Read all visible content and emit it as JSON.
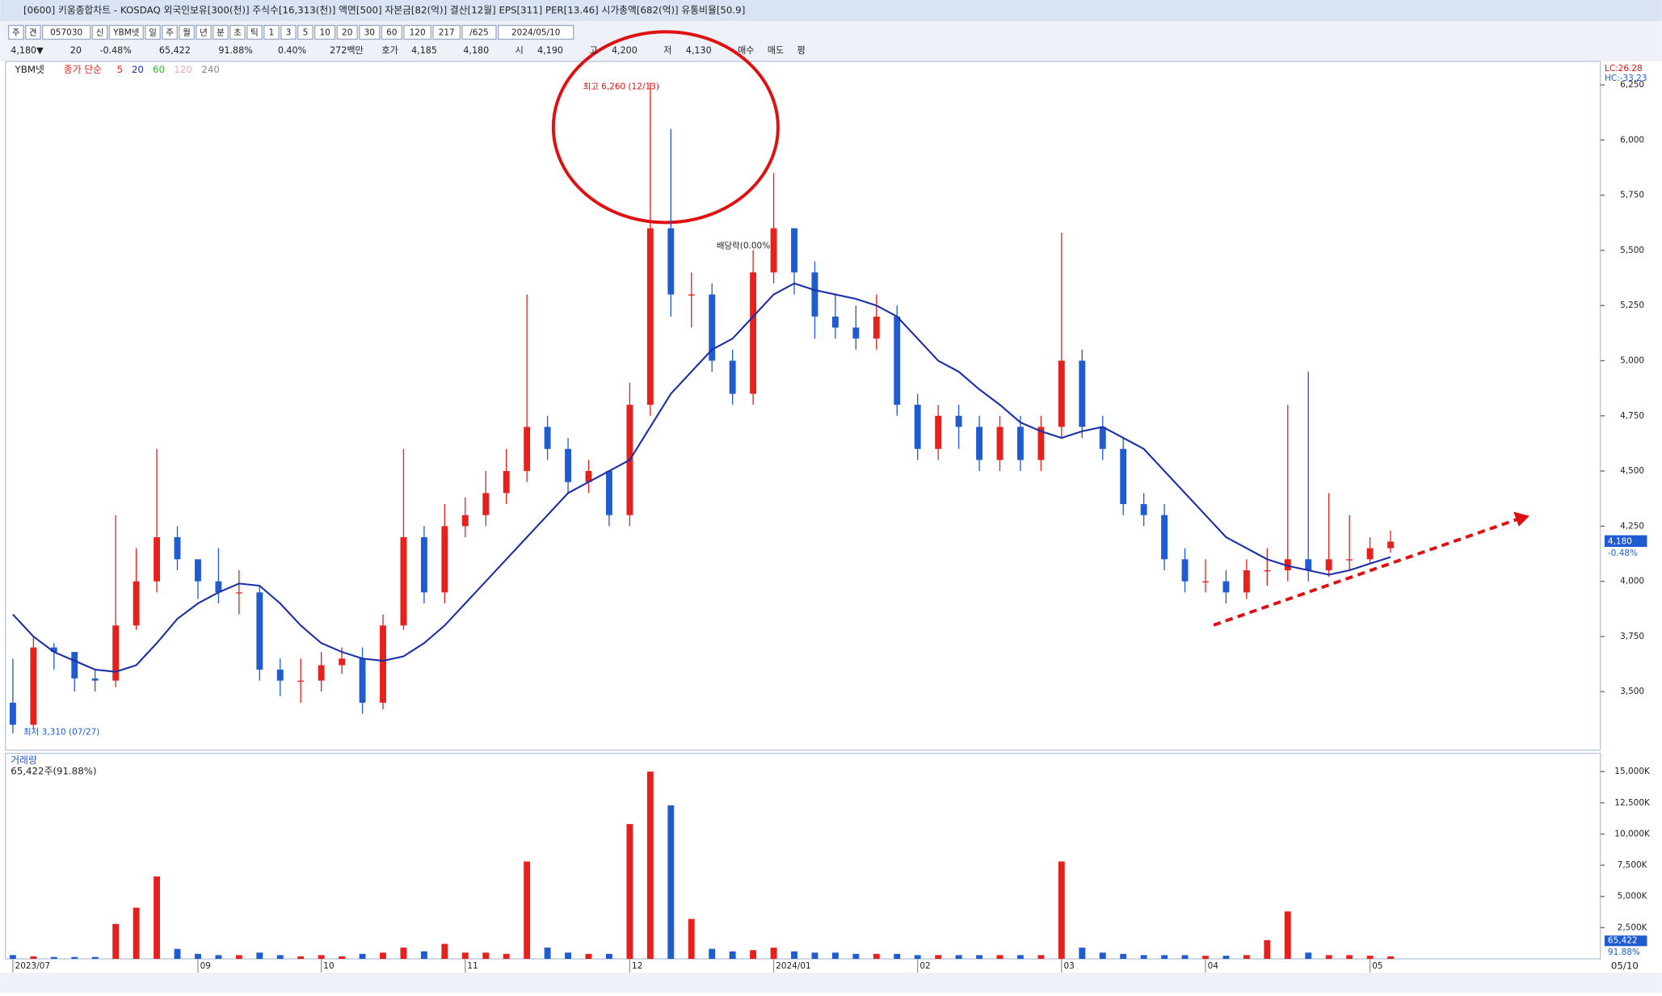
{
  "title_bar": "[0600] 키움종합차트 - KOSDAQ 외국인보유[300(천)] 주식수[16,313(천)] 액면[500] 자본금[82(억)] 결산[12월] EPS[311] PER[13.46] 시가총액[682(억)] 유통비율[50.9]",
  "toolbar": [
    "주",
    "견",
    "057030",
    "신",
    "YBM넷",
    "일",
    "주",
    "월",
    "년",
    "분",
    "초",
    "틱",
    "1",
    "3",
    "5",
    "10",
    "20",
    "30",
    "60",
    "120",
    "217",
    "/625",
    "2024/05/10"
  ],
  "info_row": [
    "4,180▼",
    "20",
    "-0.48%",
    "65,422",
    "91.88%",
    "0.40%",
    "272백만",
    "호가",
    "4,185",
    "4,180",
    "시",
    "4,190",
    "고",
    "4,200",
    "저",
    "4,130",
    "매수",
    "매도",
    "평"
  ],
  "chart_data": {
    "type": "candlestick",
    "stock": "YBM넷",
    "ma_label": "종가 단순",
    "legend": [
      {
        "name": "5",
        "color": "#e8201c"
      },
      {
        "name": "20",
        "color": "#1a2fa8"
      },
      {
        "name": "60",
        "color": "#2eb82e"
      },
      {
        "name": "120",
        "color": "#f4a6b8"
      },
      {
        "name": "240",
        "color": "#888888"
      }
    ],
    "categories": [
      "2023/07",
      null,
      null,
      null,
      null,
      null,
      null,
      null,
      null,
      "09",
      null,
      null,
      null,
      null,
      null,
      "10",
      null,
      null,
      null,
      null,
      null,
      null,
      "11",
      null,
      null,
      null,
      null,
      null,
      null,
      null,
      "12",
      null,
      null,
      null,
      null,
      null,
      null,
      "2024/01",
      null,
      null,
      null,
      null,
      null,
      null,
      "02",
      null,
      null,
      null,
      null,
      null,
      null,
      "03",
      null,
      null,
      null,
      null,
      null,
      null,
      "04",
      null,
      null,
      null,
      null,
      null,
      null,
      null,
      "05",
      null
    ],
    "open": [
      3450,
      3350,
      3700,
      3680,
      3560,
      3550,
      3800,
      4000,
      4200,
      4100,
      4000,
      3950,
      3950,
      3600,
      3550,
      3550,
      3620,
      3650,
      3450,
      3800,
      4200,
      3950,
      4250,
      4300,
      4400,
      4500,
      4700,
      4600,
      4450,
      4500,
      4300,
      4800,
      5600,
      5300,
      5300,
      5000,
      4850,
      5400,
      5600,
      5400,
      5200,
      5150,
      5100,
      5200,
      4800,
      4600,
      4750,
      4700,
      4550,
      4700,
      4550,
      4700,
      5000,
      4700,
      4600,
      4350,
      4300,
      4100,
      4000,
      4000,
      3950,
      4050,
      4050,
      4100,
      4050,
      4100,
      4100,
      4150
    ],
    "high": [
      3650,
      3750,
      3720,
      3650,
      3600,
      4300,
      4150,
      4600,
      4250,
      4100,
      4150,
      4050,
      3980,
      3650,
      3650,
      3680,
      3700,
      3700,
      3850,
      4600,
      4250,
      4350,
      4380,
      4500,
      4600,
      5300,
      4750,
      4650,
      4550,
      4500,
      4900,
      6260,
      6050,
      5400,
      5350,
      5050,
      5500,
      5850,
      5600,
      5450,
      5300,
      5250,
      5300,
      5250,
      4850,
      4800,
      4800,
      4750,
      4750,
      4750,
      4750,
      5580,
      5050,
      4750,
      4650,
      4400,
      4350,
      4150,
      4100,
      4050,
      4100,
      4150,
      4800,
      4950,
      4400,
      4300,
      4200,
      4230
    ],
    "low": [
      3310,
      3330,
      3600,
      3500,
      3500,
      3520,
      3780,
      3950,
      4050,
      3920,
      3900,
      3850,
      3550,
      3480,
      3450,
      3500,
      3580,
      3400,
      3420,
      3780,
      3900,
      3900,
      4200,
      4250,
      4350,
      4450,
      4550,
      4400,
      4400,
      4250,
      4250,
      4750,
      5200,
      5150,
      4950,
      4800,
      4800,
      5350,
      5300,
      5100,
      5100,
      5050,
      5050,
      4750,
      4550,
      4550,
      4600,
      4500,
      4500,
      4500,
      4500,
      4650,
      4650,
      4550,
      4300,
      4250,
      4050,
      3950,
      3950,
      3900,
      3920,
      3980,
      4000,
      4000,
      4020,
      4050,
      4080,
      4130
    ],
    "close": [
      3350,
      3700,
      3680,
      3560,
      3550,
      3800,
      4000,
      4200,
      4100,
      4000,
      3950,
      3950,
      3600,
      3550,
      3550,
      3620,
      3650,
      3450,
      3800,
      4200,
      3950,
      4250,
      4300,
      4400,
      4500,
      4700,
      4600,
      4450,
      4500,
      4300,
      4800,
      5600,
      5300,
      5300,
      5000,
      4850,
      5400,
      5600,
      5400,
      5200,
      5150,
      5100,
      5200,
      4800,
      4600,
      4750,
      4700,
      4550,
      4700,
      4550,
      4700,
      5000,
      4700,
      4600,
      4350,
      4300,
      4100,
      4000,
      4000,
      3950,
      4050,
      4050,
      4100,
      4050,
      4100,
      4100,
      4150,
      4180
    ],
    "up_color": "#e8201c",
    "down_color": "#1f5bd1",
    "series": [
      {
        "name": "20",
        "color": "#1a2fa8",
        "values": [
          3850,
          3750,
          3680,
          3640,
          3600,
          3590,
          3620,
          3720,
          3830,
          3900,
          3950,
          3990,
          3980,
          3900,
          3800,
          3720,
          3680,
          3650,
          3640,
          3660,
          3720,
          3800,
          3900,
          4000,
          4100,
          4200,
          4300,
          4400,
          4450,
          4500,
          4550,
          4700,
          4850,
          4950,
          5050,
          5100,
          5200,
          5300,
          5350,
          5320,
          5300,
          5280,
          5250,
          5200,
          5100,
          5000,
          4950,
          4870,
          4800,
          4720,
          4680,
          4650,
          4680,
          4700,
          4650,
          4600,
          4500,
          4400,
          4300,
          4200,
          4150,
          4100,
          4070,
          4050,
          4030,
          4050,
          4080,
          4110
        ]
      }
    ],
    "ylim": [
      3235,
      6356
    ],
    "yticks": [
      {
        "value": 3500,
        "label": "3,500"
      },
      {
        "value": 3750,
        "label": "3,750"
      },
      {
        "value": 4000,
        "label": "4,000"
      },
      {
        "value": 4250,
        "label": "4,250"
      },
      {
        "value": 4500,
        "label": "4,500"
      },
      {
        "value": 4750,
        "label": "4,750"
      },
      {
        "value": 5000,
        "label": "5,000"
      },
      {
        "value": 5250,
        "label": "5,250"
      },
      {
        "value": 5500,
        "label": "5,500"
      },
      {
        "value": 5750,
        "label": "5,750"
      },
      {
        "value": 6000,
        "label": "6,000"
      },
      {
        "value": 6250,
        "label": "6,250"
      }
    ],
    "high_note": "최고 6,260 (12/13)",
    "low_note": "최저 3,310 (07/27)",
    "dividend_note": "배당락(0.00%)",
    "lc": "LC:26.28",
    "hc": "HC:-33.23",
    "last_label": "4,180",
    "last_change": "-0.48%",
    "end_date": "05/10",
    "volume": {
      "title": "거래량",
      "summary": "65,422주(91.88%)",
      "last_label": "65,422",
      "last_ratio": "91.88%",
      "values": [
        300,
        200,
        150,
        150,
        150,
        2800,
        4100,
        6600,
        800,
        400,
        300,
        300,
        500,
        300,
        200,
        300,
        200,
        400,
        500,
        900,
        600,
        1200,
        500,
        500,
        400,
        7800,
        900,
        500,
        400,
        400,
        10800,
        15000,
        12300,
        3200,
        800,
        600,
        700,
        900,
        600,
        500,
        500,
        400,
        400,
        400,
        300,
        300,
        300,
        300,
        300,
        300,
        300,
        7800,
        900,
        500,
        400,
        300,
        300,
        300,
        250,
        250,
        300,
        1500,
        3800,
        500,
        300,
        300,
        250,
        200
      ],
      "ylim": [
        0,
        15700
      ],
      "yticks": [
        {
          "value": 2500,
          "label": "2,500K"
        },
        {
          "value": 5000,
          "label": "5,000K"
        },
        {
          "value": 7500,
          "label": "7,500K"
        },
        {
          "value": 10000,
          "label": "10,000K"
        },
        {
          "value": 12500,
          "label": "12,500K"
        },
        {
          "value": 15000,
          "label": "15,000K"
        }
      ]
    }
  }
}
